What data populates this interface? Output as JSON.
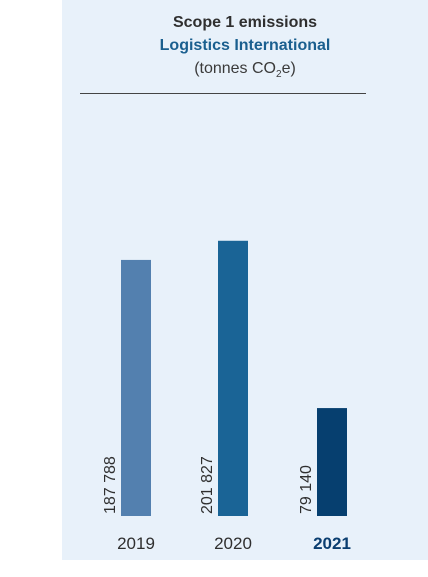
{
  "chart_data": {
    "type": "bar",
    "title": "Scope 1 emissions",
    "subtitle": "Logistics International",
    "unit_prefix": "(tonnes CO",
    "unit_sub": "2",
    "unit_suffix": "e)",
    "categories": [
      "2019",
      "2020",
      "2021"
    ],
    "values": [
      187788,
      201827,
      79140
    ],
    "value_labels": [
      "187 788",
      "201 827",
      "79 140"
    ],
    "highlight_category": "2021",
    "colors": {
      "bars": [
        "#5380af",
        "#1a6496",
        "#063f6f"
      ],
      "highlight_text": "#0b3e70",
      "axis_text": "#2f2f2f",
      "background": "#e8f1fa"
    },
    "ylim": [
      0,
      220000
    ],
    "grid": false,
    "legend": "none"
  }
}
